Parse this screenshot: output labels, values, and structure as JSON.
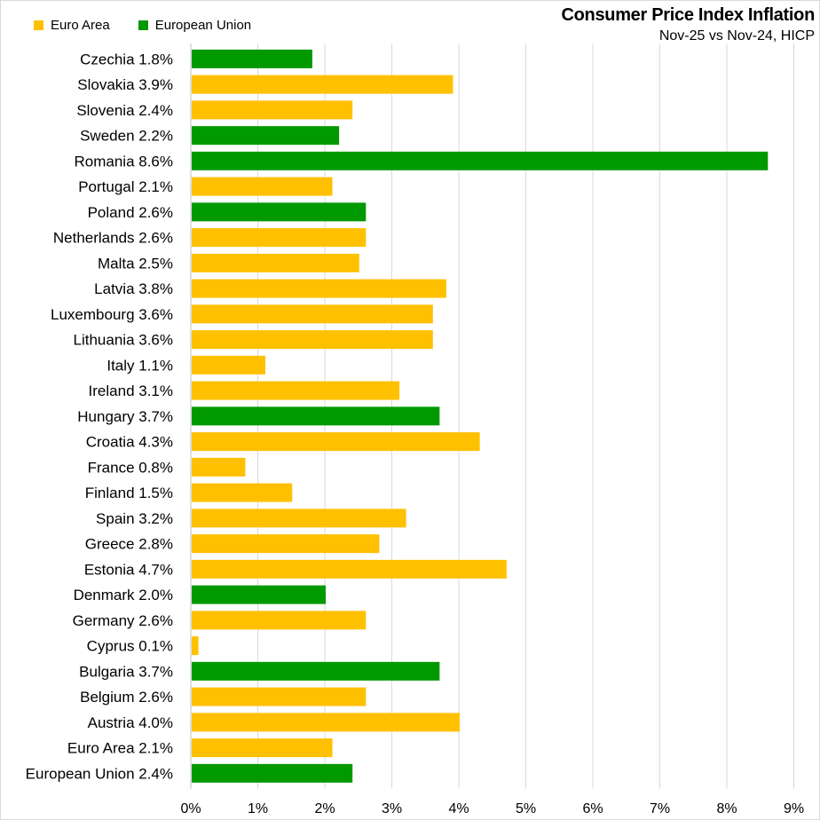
{
  "chart_data": {
    "type": "bar",
    "orientation": "horizontal",
    "title": "Consumer Price Index Inflation",
    "subtitle": "Nov-25 vs Nov-24, HICP",
    "xlim": [
      0,
      9
    ],
    "xticks": [
      "0%",
      "1%",
      "2%",
      "3%",
      "4%",
      "5%",
      "6%",
      "7%",
      "8%",
      "9%"
    ],
    "grid": "vertical",
    "legend_position": "top-left",
    "legend": [
      {
        "name": "Euro Area",
        "color": "#FFC000"
      },
      {
        "name": "European Union",
        "color": "#009900"
      }
    ],
    "categories": [
      {
        "label": "Czechia 1.8%",
        "value": 1.8,
        "group": "European Union"
      },
      {
        "label": "Slovakia 3.9%",
        "value": 3.9,
        "group": "Euro Area"
      },
      {
        "label": "Slovenia 2.4%",
        "value": 2.4,
        "group": "Euro Area"
      },
      {
        "label": "Sweden 2.2%",
        "value": 2.2,
        "group": "European Union"
      },
      {
        "label": "Romania 8.6%",
        "value": 8.6,
        "group": "European Union"
      },
      {
        "label": "Portugal 2.1%",
        "value": 2.1,
        "group": "Euro Area"
      },
      {
        "label": "Poland 2.6%",
        "value": 2.6,
        "group": "European Union"
      },
      {
        "label": "Netherlands 2.6%",
        "value": 2.6,
        "group": "Euro Area"
      },
      {
        "label": "Malta 2.5%",
        "value": 2.5,
        "group": "Euro Area"
      },
      {
        "label": "Latvia 3.8%",
        "value": 3.8,
        "group": "Euro Area"
      },
      {
        "label": "Luxembourg 3.6%",
        "value": 3.6,
        "group": "Euro Area"
      },
      {
        "label": "Lithuania 3.6%",
        "value": 3.6,
        "group": "Euro Area"
      },
      {
        "label": "Italy 1.1%",
        "value": 1.1,
        "group": "Euro Area"
      },
      {
        "label": "Ireland 3.1%",
        "value": 3.1,
        "group": "Euro Area"
      },
      {
        "label": "Hungary 3.7%",
        "value": 3.7,
        "group": "European Union"
      },
      {
        "label": "Croatia 4.3%",
        "value": 4.3,
        "group": "Euro Area"
      },
      {
        "label": "France 0.8%",
        "value": 0.8,
        "group": "Euro Area"
      },
      {
        "label": "Finland 1.5%",
        "value": 1.5,
        "group": "Euro Area"
      },
      {
        "label": "Spain 3.2%",
        "value": 3.2,
        "group": "Euro Area"
      },
      {
        "label": "Greece 2.8%",
        "value": 2.8,
        "group": "Euro Area"
      },
      {
        "label": "Estonia 4.7%",
        "value": 4.7,
        "group": "Euro Area"
      },
      {
        "label": "Denmark 2.0%",
        "value": 2.0,
        "group": "European Union"
      },
      {
        "label": "Germany 2.6%",
        "value": 2.6,
        "group": "Euro Area"
      },
      {
        "label": "Cyprus 0.1%",
        "value": 0.1,
        "group": "Euro Area"
      },
      {
        "label": "Bulgaria 3.7%",
        "value": 3.7,
        "group": "European Union"
      },
      {
        "label": "Belgium 2.6%",
        "value": 2.6,
        "group": "Euro Area"
      },
      {
        "label": "Austria 4.0%",
        "value": 4.0,
        "group": "Euro Area"
      },
      {
        "label": "Euro Area 2.1%",
        "value": 2.1,
        "group": "Euro Area"
      },
      {
        "label": "European Union 2.4%",
        "value": 2.4,
        "group": "European Union"
      }
    ]
  }
}
